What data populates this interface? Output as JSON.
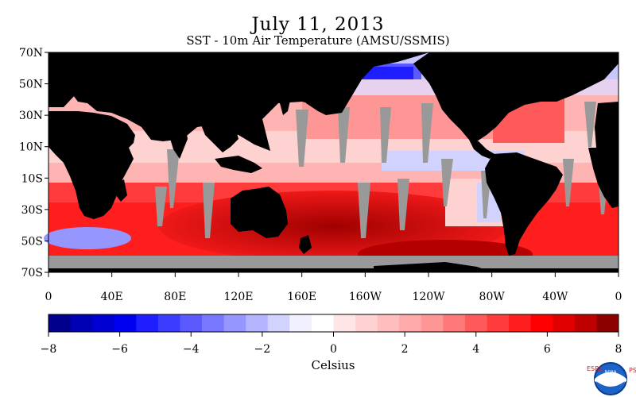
{
  "title": "July 11, 2013",
  "subtitle": "SST - 10m Air Temperature (AMSU/SSMIS)",
  "map": {
    "latitude_labels": [
      "70N",
      "50N",
      "30N",
      "10N",
      "10S",
      "30S",
      "50S",
      "70S"
    ],
    "latitudes": [
      70,
      50,
      30,
      10,
      -10,
      -30,
      -50,
      -70
    ],
    "longitude_labels": [
      "0",
      "40E",
      "80E",
      "120E",
      "160E",
      "160W",
      "120W",
      "80W",
      "40W",
      "0"
    ],
    "longitudes": [
      0,
      40,
      80,
      120,
      160,
      200,
      240,
      280,
      320,
      360
    ],
    "land_color": "#000000",
    "missing_data_color": "#999999"
  },
  "colorbar": {
    "label": "Celsius",
    "tick_labels": [
      "−8",
      "−6",
      "−4",
      "−2",
      "0",
      "2",
      "4",
      "6",
      "8"
    ],
    "ticks": [
      -8,
      -6,
      -4,
      -2,
      0,
      2,
      4,
      6,
      8
    ],
    "colors": [
      "#00008c",
      "#0000b4",
      "#0000d2",
      "#0000f0",
      "#1e1eff",
      "#3c3cff",
      "#5a5aff",
      "#7878ff",
      "#9696ff",
      "#b4b4ff",
      "#d2d2ff",
      "#f0f0ff",
      "#ffffff",
      "#ffe6e6",
      "#ffd2d2",
      "#ffbebe",
      "#ffaaaa",
      "#ff9696",
      "#ff7878",
      "#ff5a5a",
      "#ff3c3c",
      "#ff1e1e",
      "#ff0000",
      "#e10000",
      "#be0000",
      "#8c0000"
    ]
  },
  "branding": {
    "left_letters": "ESRL",
    "right_letters": "PSD",
    "logo_text": "NOAA"
  }
}
